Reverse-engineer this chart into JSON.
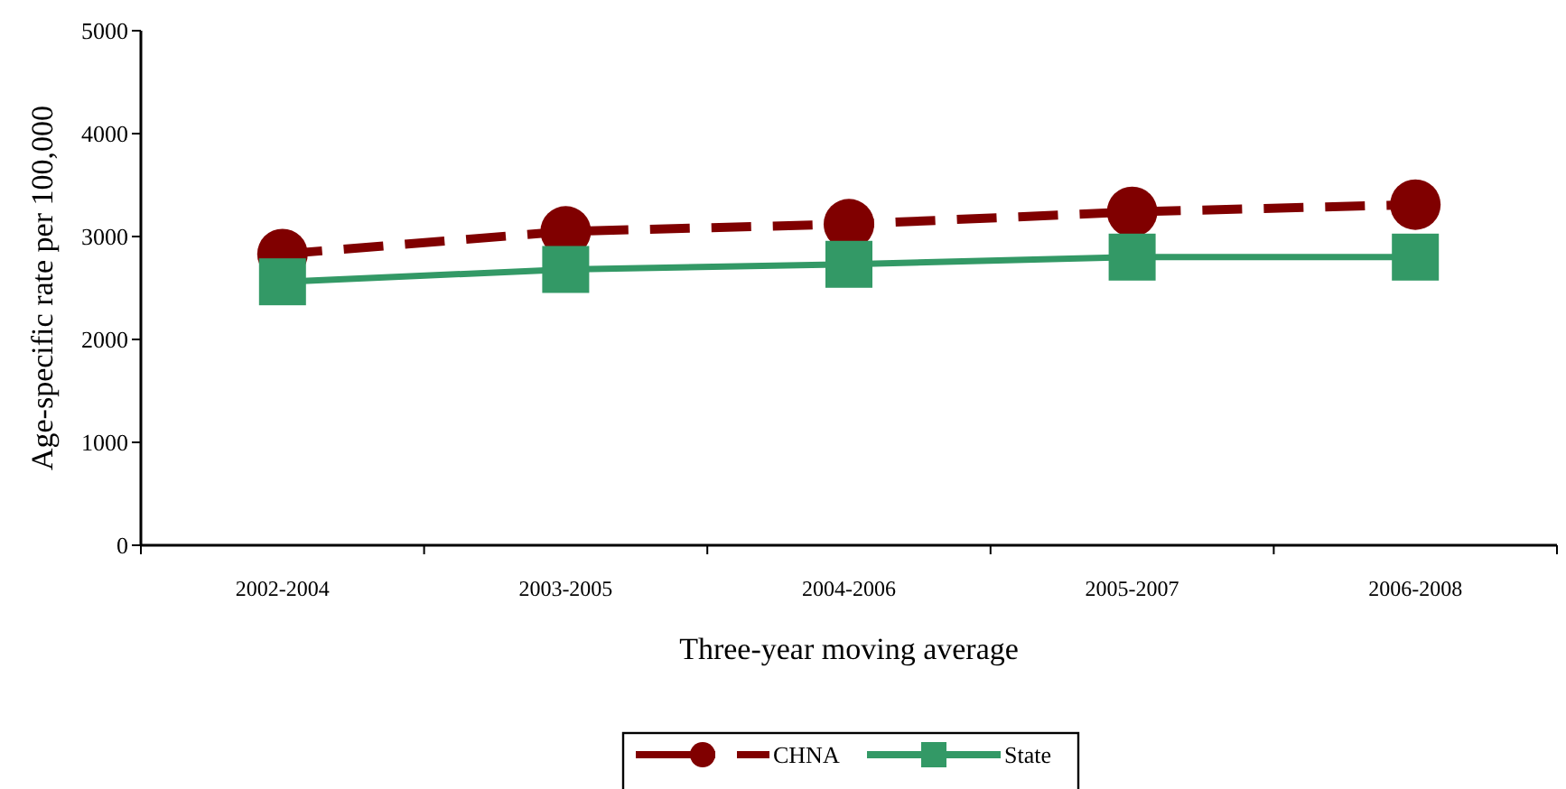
{
  "chart_data": {
    "type": "line",
    "xlabel": "Three-year moving average",
    "ylabel": "Age-specific rate per 100,000",
    "categories": [
      "2002-2004",
      "2003-2005",
      "2004-2006",
      "2005-2007",
      "2006-2008"
    ],
    "series": [
      {
        "name": "CHNA",
        "color": "#800000",
        "values": [
          2830,
          3050,
          3120,
          3240,
          3310
        ],
        "marker": "circle",
        "line_style": "dashed"
      },
      {
        "name": "State",
        "color": "#339966",
        "values": [
          2560,
          2680,
          2730,
          2800,
          2800
        ],
        "marker": "square",
        "line_style": "solid"
      }
    ],
    "ylim": [
      0,
      5000
    ],
    "yticks": [
      0,
      1000,
      2000,
      3000,
      4000,
      5000
    ],
    "grid": false,
    "legend": "bottom"
  }
}
